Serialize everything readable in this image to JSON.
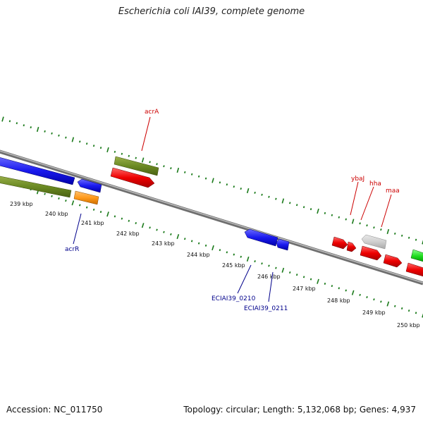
{
  "title": "Escherichia coli IAI39, complete genome",
  "footer": {
    "accession": "Accession: NC_011750",
    "stats": "Topology: circular; Length: 5,132,068 bp; Genes: 4,937"
  },
  "colors": {
    "backbone": "#8a8a8a",
    "tick": "#1a7a1a",
    "label_red": "#cc0000",
    "label_blue": "#00008b"
  },
  "axis_labels": [
    "239 kbp",
    "240 kbp",
    "241 kbp",
    "242 kbp",
    "243 kbp",
    "244 kbp",
    "245 kbp",
    "246 kbp",
    "247 kbp",
    "248 kbp",
    "249 kbp",
    "250 kbp"
  ],
  "gene_labels": [
    {
      "id": "acrA",
      "text": "acrA",
      "color": "red"
    },
    {
      "id": "ybaJ",
      "text": "ybaJ",
      "color": "red"
    },
    {
      "id": "hha",
      "text": "hha",
      "color": "red"
    },
    {
      "id": "maa",
      "text": "maa",
      "color": "red"
    },
    {
      "id": "acrR",
      "text": "acrR",
      "color": "blue"
    },
    {
      "id": "ECIAI39_0210",
      "text": "ECIAI39_0210",
      "color": "blue"
    },
    {
      "id": "ECIAI39_0211",
      "text": "ECIAI39_0211",
      "color": "blue"
    }
  ],
  "features": [
    {
      "name": "gene-blue-left",
      "color": "blue"
    },
    {
      "name": "gene-olive-left",
      "color": "olive"
    },
    {
      "name": "gene-blue-small",
      "color": "blue"
    },
    {
      "name": "gene-orange-acrR",
      "color": "orange"
    },
    {
      "name": "gene-olive-acrA",
      "color": "olive"
    },
    {
      "name": "gene-red-acrA",
      "color": "red"
    },
    {
      "name": "gene-blue-0210",
      "color": "blue"
    },
    {
      "name": "gene-blue-0211",
      "color": "blue"
    },
    {
      "name": "gene-red-ybaJ",
      "color": "red"
    },
    {
      "name": "gene-red-small",
      "color": "red"
    },
    {
      "name": "gene-gray-hha",
      "color": "gray"
    },
    {
      "name": "gene-red-hha",
      "color": "red"
    },
    {
      "name": "gene-red-maa",
      "color": "red"
    },
    {
      "name": "gene-green-right",
      "color": "green"
    },
    {
      "name": "gene-red-right",
      "color": "red"
    }
  ]
}
